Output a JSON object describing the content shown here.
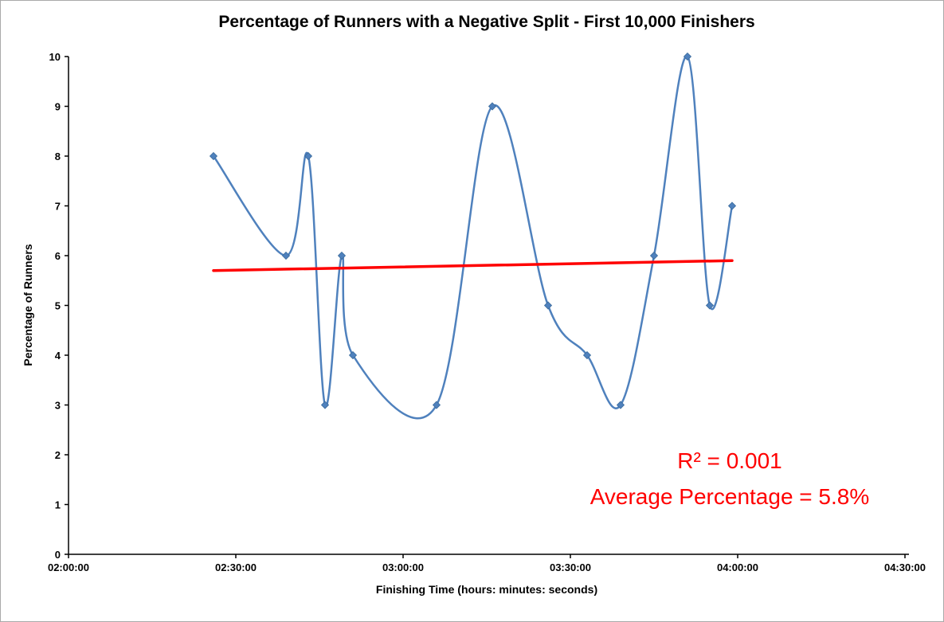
{
  "window": {
    "background": "#FFFFFF",
    "border_color": "#A9A9A9"
  },
  "chart_data": {
    "type": "line",
    "title": "Percentage of Runners with a Negative Split - First 10,000 Finishers",
    "xlabel": "Finishing Time (hours: minutes: seconds)",
    "ylabel": "Percentage of Runners",
    "grid": false,
    "legend": "none",
    "x_axis": {
      "tick_labels": [
        "02:00:00",
        "02:30:00",
        "03:00:00",
        "03:30:00",
        "04:00:00",
        "04:30:00"
      ],
      "tick_seconds": [
        7200,
        9000,
        10800,
        12600,
        14400,
        16200
      ],
      "range_seconds": [
        7200,
        16200
      ]
    },
    "y_axis": {
      "ticks": [
        0,
        1,
        2,
        3,
        4,
        5,
        6,
        7,
        8,
        9,
        10
      ],
      "range": [
        0,
        10
      ]
    },
    "series": [
      {
        "name": "Percentage of Runners",
        "line_style": "smooth",
        "color": "#4F81BD",
        "marker": "diamond",
        "points": [
          {
            "time": "02:26:00",
            "seconds": 8760,
            "value": 8
          },
          {
            "time": "02:39:00",
            "seconds": 9540,
            "value": 6
          },
          {
            "time": "02:43:00",
            "seconds": 9780,
            "value": 8
          },
          {
            "time": "02:46:00",
            "seconds": 9960,
            "value": 3
          },
          {
            "time": "02:49:00",
            "seconds": 10140,
            "value": 6
          },
          {
            "time": "02:51:00",
            "seconds": 10260,
            "value": 4
          },
          {
            "time": "03:06:00",
            "seconds": 11160,
            "value": 3
          },
          {
            "time": "03:16:00",
            "seconds": 11760,
            "value": 9
          },
          {
            "time": "03:26:00",
            "seconds": 12360,
            "value": 5
          },
          {
            "time": "03:33:00",
            "seconds": 12780,
            "value": 4
          },
          {
            "time": "03:39:00",
            "seconds": 13140,
            "value": 3
          },
          {
            "time": "03:45:00",
            "seconds": 13500,
            "value": 6
          },
          {
            "time": "03:51:00",
            "seconds": 13860,
            "value": 10
          },
          {
            "time": "03:55:00",
            "seconds": 14100,
            "value": 5
          },
          {
            "time": "03:59:00",
            "seconds": 14340,
            "value": 7
          }
        ]
      }
    ],
    "trendline": {
      "color": "#FF0000",
      "start": {
        "seconds": 8760,
        "value": 5.7
      },
      "end": {
        "seconds": 14340,
        "value": 5.9
      }
    },
    "annotations": [
      {
        "id": "r-squared",
        "text": "R² = 0.001",
        "color": "#FF0000"
      },
      {
        "id": "average-percentage",
        "text": "Average Percentage = 5.8%",
        "color": "#FF0000"
      }
    ]
  }
}
